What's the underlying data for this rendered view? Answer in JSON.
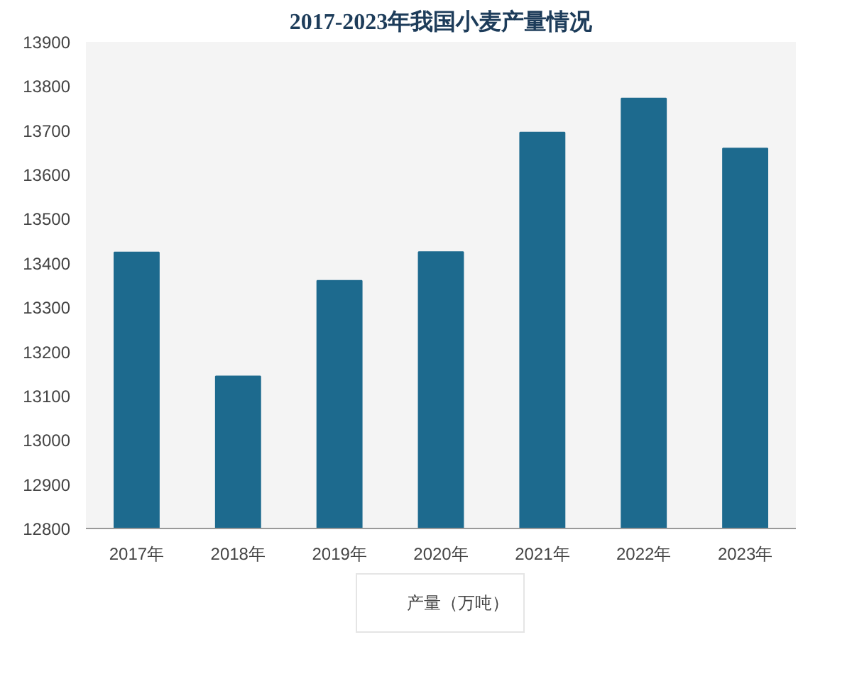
{
  "chart_data": {
    "type": "bar",
    "title": "2017-2023年我国小麦产量情况",
    "categories": [
      "2017年",
      "2018年",
      "2019年",
      "2020年",
      "2021年",
      "2022年",
      "2023年"
    ],
    "series": [
      {
        "name": "产量（万吨）",
        "color": "#1d6a8e",
        "values": [
          13424,
          13144,
          13360,
          13425,
          13695,
          13772,
          13659
        ]
      }
    ],
    "ylim": [
      12800,
      13900
    ],
    "yticks": [
      12800,
      12900,
      13000,
      13100,
      13200,
      13300,
      13400,
      13500,
      13600,
      13700,
      13800,
      13900
    ],
    "grid": false,
    "legend": "bottom"
  }
}
